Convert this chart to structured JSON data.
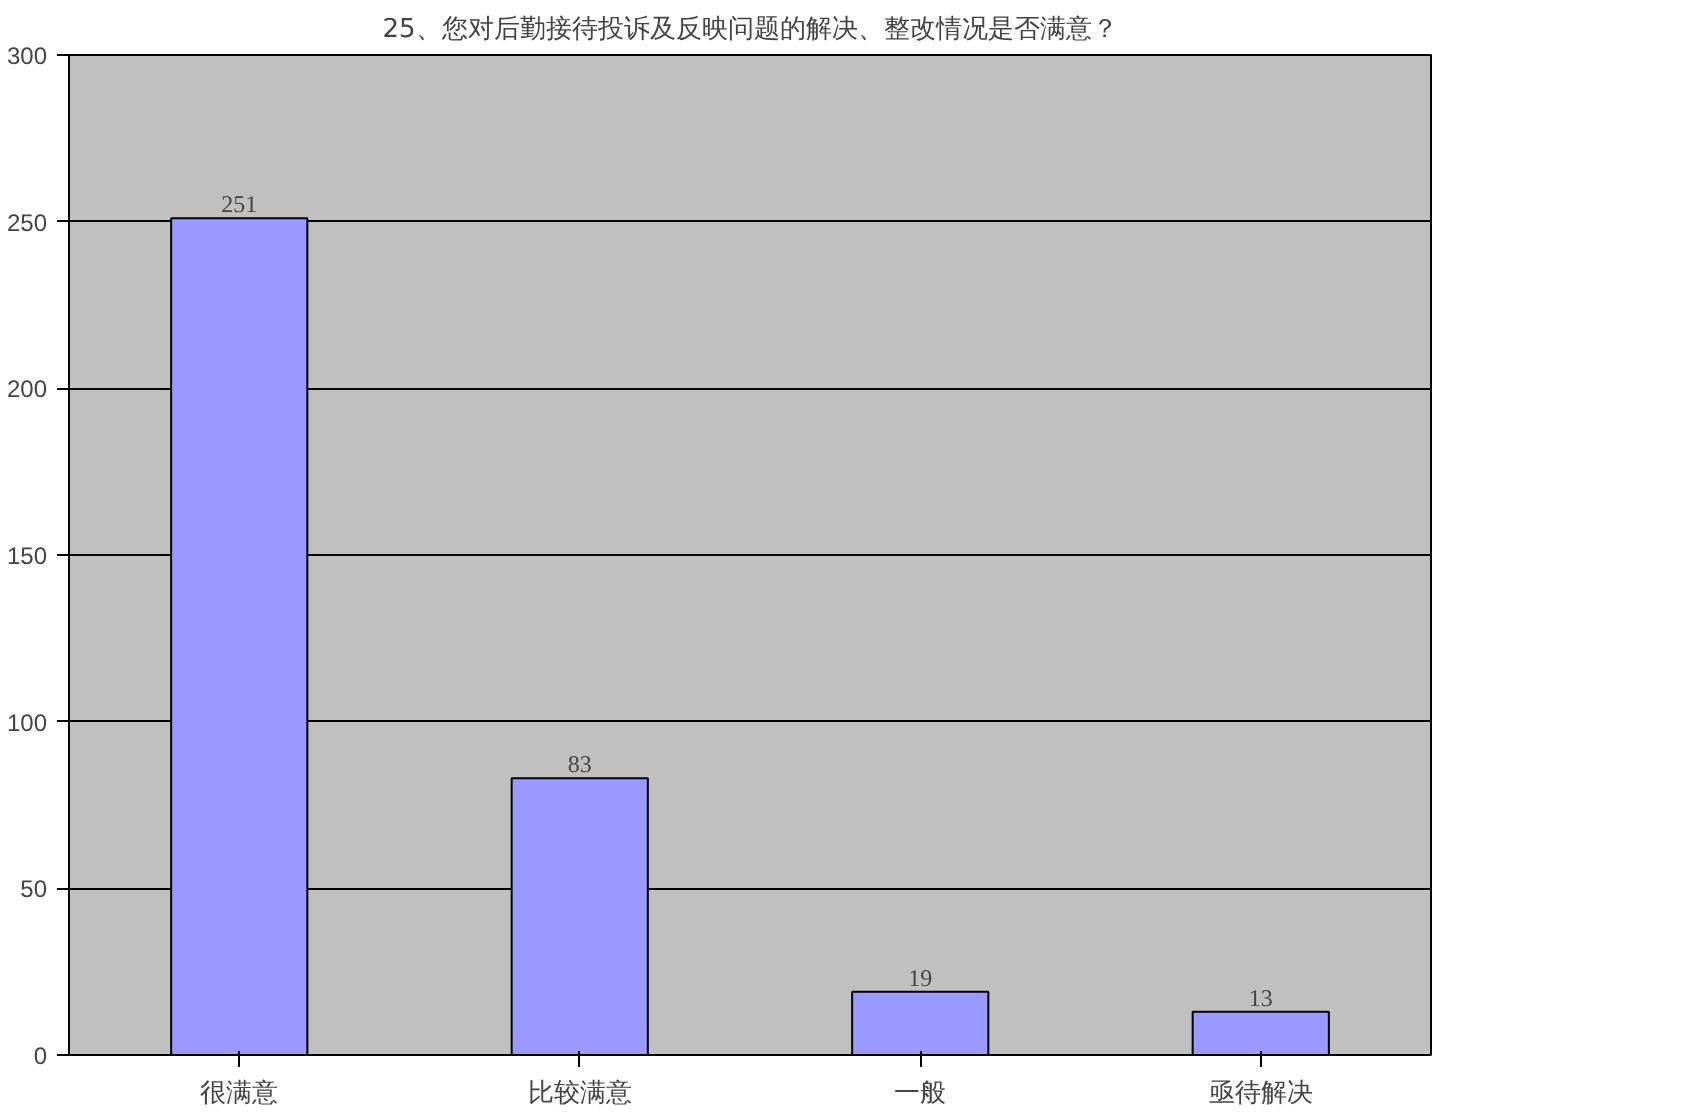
{
  "chart_data": {
    "type": "bar",
    "title": "25、您对后勤接待投诉及反映问题的解决、整改情况是否满意？",
    "categories": [
      "很满意",
      "比较满意",
      "一般",
      "亟待解决"
    ],
    "values": [
      251,
      83,
      19,
      13
    ],
    "color": "#9999ff",
    "ylim": [
      0,
      300
    ],
    "yticks": [
      0,
      50,
      100,
      150,
      200,
      250,
      300
    ],
    "grid": "y",
    "data_labels": true
  }
}
